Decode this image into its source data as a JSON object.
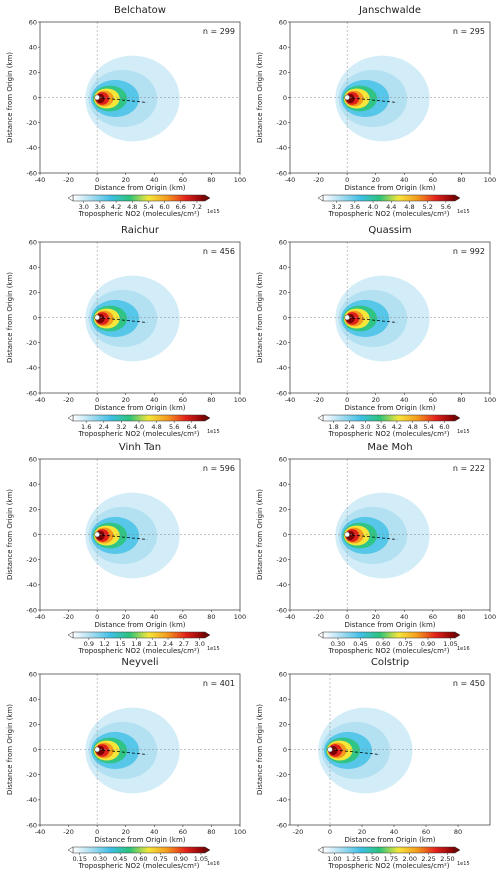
{
  "colormap": [
    "#ffffff",
    "#a6dcf0",
    "#3fbfe6",
    "#2cc37a",
    "#f5e63a",
    "#f59a1e",
    "#e0201b",
    "#7a0000"
  ],
  "chart_data": [
    {
      "type": "heatmap",
      "title": "Belchatow",
      "annotation": "n = 299",
      "xlabel": "Distance from Origin (km)",
      "ylabel": "Distance from Origin (km)",
      "xlim": [
        -40,
        100
      ],
      "ylim": [
        -60,
        60
      ],
      "xticks": [
        -40,
        -20,
        0,
        20,
        40,
        60,
        80,
        100
      ],
      "yticks": [
        -60,
        -40,
        -20,
        0,
        20,
        40,
        60
      ],
      "colorbar_label": "Tropospheric NO2 (molecules/cm²)",
      "colorbar_offset": "1e15",
      "clim": [
        2.6,
        7.5
      ],
      "cticks": [
        {
          "value": 3,
          "label": "3.0"
        },
        3.6,
        4.2,
        4.8,
        5.4,
        {
          "value": 6,
          "label": "6.0"
        },
        6.6,
        7.2
      ]
    },
    {
      "type": "heatmap",
      "title": "Janschwalde",
      "annotation": "n = 295",
      "xlabel": "Distance from Origin (km)",
      "ylabel": "Distance from Origin (km)",
      "xlim": [
        -40,
        100
      ],
      "ylim": [
        -60,
        60
      ],
      "xticks": [
        -40,
        -20,
        0,
        20,
        40,
        60,
        80,
        100
      ],
      "yticks": [
        -60,
        -40,
        -20,
        0,
        20,
        40,
        60
      ],
      "colorbar_label": "Tropospheric NO2 (molecules/cm²)",
      "colorbar_offset": "1e15",
      "clim": [
        2.9,
        5.8
      ],
      "cticks": [
        3.2,
        3.6,
        {
          "value": 4,
          "label": "4.0"
        },
        4.4,
        4.8,
        5.2,
        5.6
      ]
    },
    {
      "type": "heatmap",
      "title": "Raichur",
      "annotation": "n = 456",
      "xlabel": "Distance from Origin (km)",
      "ylabel": "Distance from Origin (km)",
      "xlim": [
        -40,
        100
      ],
      "ylim": [
        -60,
        60
      ],
      "xticks": [
        -40,
        -20,
        0,
        20,
        40,
        60,
        80,
        100
      ],
      "yticks": [
        -60,
        -40,
        -20,
        0,
        20,
        40,
        60
      ],
      "colorbar_label": "Tropospheric NO2 (molecules/cm²)",
      "colorbar_offset": "1e15",
      "clim": [
        1.0,
        7.0
      ],
      "cticks": [
        1.6,
        2.4,
        3.2,
        {
          "value": 4,
          "label": "4.0"
        },
        4.8,
        5.6,
        6.4
      ]
    },
    {
      "type": "heatmap",
      "title": "Quassim",
      "annotation": "n = 992",
      "xlabel": "Distance from Origin (km)",
      "ylabel": "Distance from Origin (km)",
      "xlim": [
        -40,
        100
      ],
      "ylim": [
        -60,
        60
      ],
      "xticks": [
        -40,
        -20,
        0,
        20,
        40,
        60,
        80,
        100
      ],
      "yticks": [
        -60,
        -40,
        -20,
        0,
        20,
        40,
        60
      ],
      "colorbar_label": "Tropospheric NO2 (molecules/cm²)",
      "colorbar_offset": "1e15",
      "clim": [
        1.4,
        6.4
      ],
      "cticks": [
        1.8,
        2.4,
        {
          "value": 3,
          "label": "3.0"
        },
        3.6,
        4.2,
        4.8,
        5.4,
        {
          "value": 6,
          "label": "6.0"
        }
      ]
    },
    {
      "type": "heatmap",
      "title": "Vinh Tan",
      "annotation": "n = 596",
      "xlabel": "Distance from Origin (km)",
      "ylabel": "Distance from Origin (km)",
      "xlim": [
        -40,
        100
      ],
      "ylim": [
        -60,
        60
      ],
      "xticks": [
        -40,
        -20,
        0,
        20,
        40,
        60,
        80,
        100
      ],
      "yticks": [
        -60,
        -40,
        -20,
        0,
        20,
        40,
        60
      ],
      "colorbar_label": "Tropospheric NO2 (molecules/cm²)",
      "colorbar_offset": "1e15",
      "clim": [
        0.6,
        3.1
      ],
      "cticks": [
        0.9,
        1.2,
        1.5,
        1.8,
        2.1,
        2.4,
        2.7,
        {
          "value": 3,
          "label": "3.0"
        }
      ]
    },
    {
      "type": "heatmap",
      "title": "Mae Moh",
      "annotation": "n = 222",
      "xlabel": "Distance from Origin (km)",
      "ylabel": "Distance from Origin (km)",
      "xlim": [
        -40,
        100
      ],
      "ylim": [
        -60,
        60
      ],
      "xticks": [
        -40,
        -20,
        0,
        20,
        40,
        60,
        80,
        100
      ],
      "yticks": [
        -60,
        -40,
        -20,
        0,
        20,
        40,
        60
      ],
      "colorbar_label": "Tropospheric NO2 (molecules/cm²)",
      "colorbar_offset": "1e16",
      "clim": [
        0.2,
        1.08
      ],
      "cticks": [
        {
          "value": 0.3,
          "label": "0.30"
        },
        0.45,
        {
          "value": 0.6,
          "label": "0.60"
        },
        0.75,
        {
          "value": 0.9,
          "label": "0.90"
        },
        1.05
      ]
    },
    {
      "type": "heatmap",
      "title": "Neyveli",
      "annotation": "n = 401",
      "xlabel": "Distance from Origin (km)",
      "ylabel": "Distance from Origin (km)",
      "xlim": [
        -40,
        100
      ],
      "ylim": [
        -60,
        60
      ],
      "xticks": [
        -40,
        -20,
        0,
        20,
        40,
        60,
        80,
        100
      ],
      "yticks": [
        -60,
        -40,
        -20,
        0,
        20,
        40,
        60
      ],
      "colorbar_label": "Tropospheric NO2 (molecules/cm²)",
      "colorbar_offset": "1e16",
      "clim": [
        0.1,
        1.08
      ],
      "cticks": [
        0.15,
        {
          "value": 0.3,
          "label": "0.30"
        },
        0.45,
        {
          "value": 0.6,
          "label": "0.60"
        },
        0.75,
        {
          "value": 0.9,
          "label": "0.90"
        },
        1.05
      ]
    },
    {
      "type": "heatmap",
      "title": "Colstrip",
      "annotation": "n = 450",
      "xlabel": "Distance from Origin (km)",
      "ylabel": "Distance from Origin (km)",
      "xlim": [
        -25,
        100
      ],
      "ylim": [
        -60,
        60
      ],
      "xticks": [
        -20,
        0,
        20,
        40,
        60,
        80
      ],
      "yticks": [
        -60,
        -40,
        -20,
        0,
        20,
        40,
        60
      ],
      "colorbar_label": "Tropospheric NO2 (molecules/cm²)",
      "colorbar_offset": "1e15",
      "clim": [
        0.85,
        2.6
      ],
      "cticks": [
        {
          "value": 1,
          "label": "1.00"
        },
        1.25,
        {
          "value": 1.5,
          "label": "1.50"
        },
        1.75,
        {
          "value": 2,
          "label": "2.00"
        },
        2.25,
        {
          "value": 2.5,
          "label": "2.50"
        }
      ]
    }
  ]
}
